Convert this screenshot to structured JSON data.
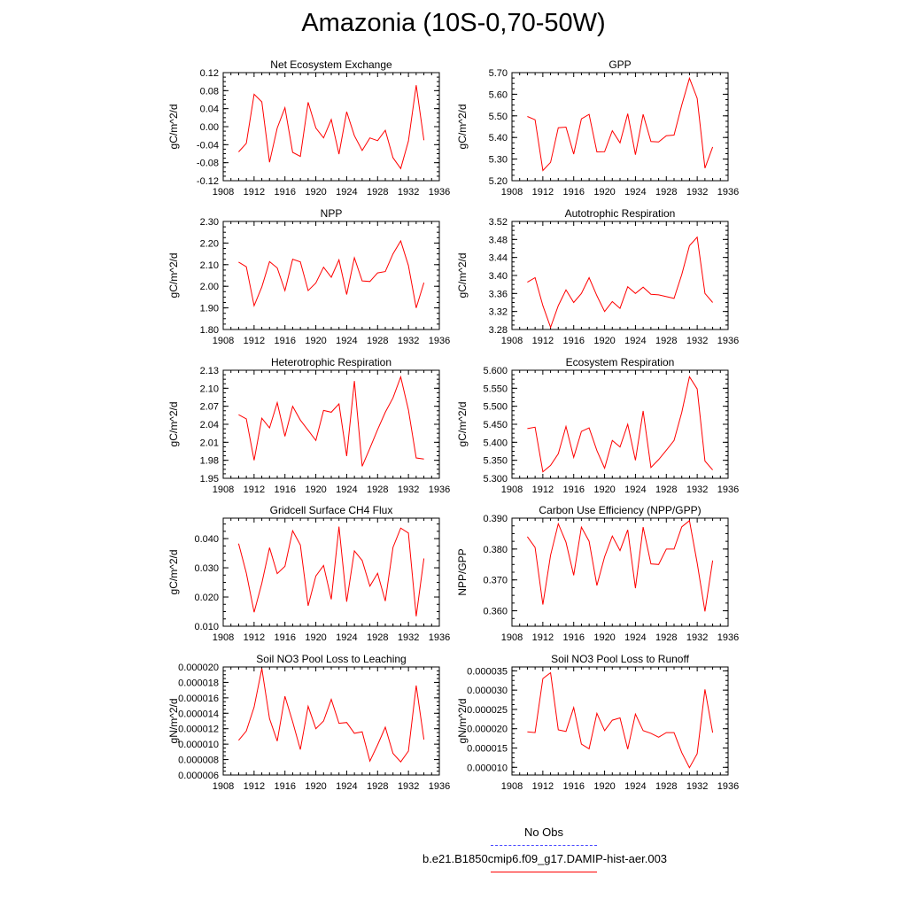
{
  "title": "Amazonia (10S-0,70-50W)",
  "line_color": "#ff0000",
  "obs_line_color": "#4a4aff",
  "legend": {
    "obs_label": "No Obs",
    "model_label": "b.e21.B1850cmip6.f09_g17.DAMIP-hist-aer.003"
  },
  "chart_data": [
    {
      "type": "line",
      "title": "Net Ecosystem Exchange",
      "ylabel": "gC/m^2/d",
      "xlim": [
        1908,
        1936
      ],
      "ylim": [
        -0.12,
        0.12
      ],
      "x_ticks": [
        "1908",
        "1912",
        "1916",
        "1920",
        "1924",
        "1928",
        "1932",
        "1936"
      ],
      "y_ticks": [
        "-0.12",
        "-0.08",
        "-0.04",
        "0.00",
        "0.04",
        "0.08",
        "0.12"
      ],
      "x": [
        1910,
        1911,
        1912,
        1913,
        1914,
        1915,
        1916,
        1917,
        1918,
        1919,
        1920,
        1921,
        1922,
        1923,
        1924,
        1925,
        1926,
        1927,
        1928,
        1929,
        1930,
        1931,
        1932,
        1933,
        1934
      ],
      "y": [
        -0.056,
        -0.037,
        0.072,
        0.055,
        -0.079,
        -0.003,
        0.042,
        -0.057,
        -0.066,
        0.054,
        -0.003,
        -0.025,
        0.016,
        -0.061,
        0.033,
        -0.02,
        -0.053,
        -0.025,
        -0.031,
        -0.008,
        -0.069,
        -0.093,
        -0.032,
        0.092,
        -0.03
      ]
    },
    {
      "type": "line",
      "title": "GPP",
      "ylabel": "gC/m^2/d",
      "xlim": [
        1908,
        1936
      ],
      "ylim": [
        5.2,
        5.7
      ],
      "x_ticks": [
        "1908",
        "1912",
        "1916",
        "1920",
        "1924",
        "1928",
        "1932",
        "1936"
      ],
      "y_ticks": [
        "5.20",
        "5.30",
        "5.40",
        "5.50",
        "5.60",
        "5.70"
      ],
      "x": [
        1910,
        1911,
        1912,
        1913,
        1914,
        1915,
        1916,
        1917,
        1918,
        1919,
        1920,
        1921,
        1922,
        1923,
        1924,
        1925,
        1926,
        1927,
        1928,
        1929,
        1930,
        1931,
        1932,
        1933,
        1934
      ],
      "y": [
        5.497,
        5.482,
        5.247,
        5.285,
        5.445,
        5.448,
        5.323,
        5.486,
        5.507,
        5.333,
        5.334,
        5.431,
        5.375,
        5.51,
        5.32,
        5.507,
        5.381,
        5.379,
        5.408,
        5.411,
        5.55,
        5.674,
        5.581,
        5.258,
        5.356
      ]
    },
    {
      "type": "line",
      "title": "NPP",
      "ylabel": "gC/m^2/d",
      "xlim": [
        1908,
        1936
      ],
      "ylim": [
        1.8,
        2.3
      ],
      "x_ticks": [
        "1908",
        "1912",
        "1916",
        "1920",
        "1924",
        "1928",
        "1932",
        "1936"
      ],
      "y_ticks": [
        "1.80",
        "1.90",
        "2.00",
        "2.10",
        "2.20",
        "2.30"
      ],
      "x": [
        1910,
        1911,
        1912,
        1913,
        1914,
        1915,
        1916,
        1917,
        1918,
        1919,
        1920,
        1921,
        1922,
        1923,
        1924,
        1925,
        1926,
        1927,
        1928,
        1929,
        1930,
        1931,
        1932,
        1933,
        1934
      ],
      "y": [
        2.112,
        2.09,
        1.91,
        1.997,
        2.114,
        2.085,
        1.98,
        2.125,
        2.113,
        1.98,
        2.015,
        2.088,
        2.042,
        2.122,
        1.962,
        2.132,
        2.025,
        2.022,
        2.062,
        2.068,
        2.15,
        2.21,
        2.096,
        1.9,
        2.017
      ]
    },
    {
      "type": "line",
      "title": "Autotrophic Respiration",
      "ylabel": "gC/m^2/d",
      "xlim": [
        1908,
        1936
      ],
      "ylim": [
        3.28,
        3.52
      ],
      "x_ticks": [
        "1908",
        "1912",
        "1916",
        "1920",
        "1924",
        "1928",
        "1932",
        "1936"
      ],
      "y_ticks": [
        "3.28",
        "3.32",
        "3.36",
        "3.40",
        "3.44",
        "3.48",
        "3.52"
      ],
      "x": [
        1910,
        1911,
        1912,
        1913,
        1914,
        1915,
        1916,
        1917,
        1918,
        1919,
        1920,
        1921,
        1922,
        1923,
        1924,
        1925,
        1926,
        1927,
        1928,
        1929,
        1930,
        1931,
        1932,
        1933,
        1934
      ],
      "y": [
        3.385,
        3.395,
        3.333,
        3.285,
        3.333,
        3.368,
        3.34,
        3.36,
        3.395,
        3.355,
        3.32,
        3.342,
        3.327,
        3.375,
        3.36,
        3.374,
        3.358,
        3.357,
        3.353,
        3.349,
        3.402,
        3.466,
        3.485,
        3.36,
        3.34
      ]
    },
    {
      "type": "line",
      "title": "Heterotrophic Respiration",
      "ylabel": "gC/m^2/d",
      "xlim": [
        1908,
        1936
      ],
      "ylim": [
        1.95,
        2.13
      ],
      "x_ticks": [
        "1908",
        "1912",
        "1916",
        "1920",
        "1924",
        "1928",
        "1932",
        "1936"
      ],
      "y_ticks": [
        "1.95",
        "1.98",
        "2.01",
        "2.04",
        "2.07",
        "2.10",
        "2.13"
      ],
      "x": [
        1910,
        1911,
        1912,
        1913,
        1914,
        1915,
        1916,
        1917,
        1918,
        1919,
        1920,
        1921,
        1922,
        1923,
        1924,
        1925,
        1926,
        1927,
        1928,
        1929,
        1930,
        1931,
        1932,
        1933,
        1934
      ],
      "y": [
        2.056,
        2.049,
        1.98,
        2.05,
        2.034,
        2.076,
        2.02,
        2.07,
        2.047,
        2.03,
        2.013,
        2.063,
        2.06,
        2.074,
        1.987,
        2.112,
        1.97,
        2.0,
        2.031,
        2.06,
        2.084,
        2.119,
        2.064,
        1.984,
        1.982
      ]
    },
    {
      "type": "line",
      "title": "Ecosystem Respiration",
      "ylabel": "gC/m^2/d",
      "xlim": [
        1908,
        1936
      ],
      "ylim": [
        5.3,
        5.6
      ],
      "x_ticks": [
        "1908",
        "1912",
        "1916",
        "1920",
        "1924",
        "1928",
        "1932",
        "1936"
      ],
      "y_ticks": [
        "5.300",
        "5.350",
        "5.400",
        "5.450",
        "5.500",
        "5.550",
        "5.600"
      ],
      "x": [
        1910,
        1911,
        1912,
        1913,
        1914,
        1915,
        1916,
        1917,
        1918,
        1919,
        1920,
        1921,
        1922,
        1923,
        1924,
        1925,
        1926,
        1927,
        1928,
        1929,
        1930,
        1931,
        1932,
        1933,
        1934
      ],
      "y": [
        5.438,
        5.442,
        5.318,
        5.336,
        5.368,
        5.444,
        5.358,
        5.43,
        5.44,
        5.377,
        5.328,
        5.405,
        5.387,
        5.45,
        5.35,
        5.487,
        5.33,
        5.352,
        5.378,
        5.405,
        5.483,
        5.582,
        5.548,
        5.348,
        5.323
      ]
    },
    {
      "type": "line",
      "title": "Gridcell Surface CH4 Flux",
      "ylabel": "gC/m^2/d",
      "xlim": [
        1908,
        1936
      ],
      "ylim": [
        0.01,
        0.047
      ],
      "x_ticks": [
        "1908",
        "1912",
        "1916",
        "1920",
        "1924",
        "1928",
        "1932",
        "1936"
      ],
      "y_ticks": [
        "0.010",
        "0.020",
        "0.030",
        "0.040"
      ],
      "y_tick_values": [
        0.01,
        0.02,
        0.03,
        0.04
      ],
      "x": [
        1910,
        1911,
        1912,
        1913,
        1914,
        1915,
        1916,
        1917,
        1918,
        1919,
        1920,
        1921,
        1922,
        1923,
        1924,
        1925,
        1926,
        1927,
        1928,
        1929,
        1930,
        1931,
        1932,
        1933,
        1934
      ],
      "y": [
        0.0383,
        0.0282,
        0.0148,
        0.0247,
        0.0369,
        0.028,
        0.0305,
        0.0427,
        0.0378,
        0.017,
        0.0272,
        0.0308,
        0.0192,
        0.0441,
        0.0184,
        0.0358,
        0.0325,
        0.0237,
        0.0281,
        0.0186,
        0.037,
        0.0436,
        0.0419,
        0.0134,
        0.0332
      ]
    },
    {
      "type": "line",
      "title": "Carbon Use Efficiency (NPP/GPP)",
      "ylabel": "NPP/GPP",
      "xlim": [
        1908,
        1936
      ],
      "ylim": [
        0.355,
        0.39
      ],
      "x_ticks": [
        "1908",
        "1912",
        "1916",
        "1920",
        "1924",
        "1928",
        "1932",
        "1936"
      ],
      "y_ticks": [
        "0.360",
        "0.370",
        "0.380",
        "0.390"
      ],
      "y_tick_values": [
        0.36,
        0.37,
        0.38,
        0.39
      ],
      "x": [
        1910,
        1911,
        1912,
        1913,
        1914,
        1915,
        1916,
        1917,
        1918,
        1919,
        1920,
        1921,
        1922,
        1923,
        1924,
        1925,
        1926,
        1927,
        1928,
        1929,
        1930,
        1931,
        1932,
        1933,
        1934
      ],
      "y": [
        0.384,
        0.3805,
        0.362,
        0.378,
        0.3882,
        0.3822,
        0.3715,
        0.3871,
        0.3825,
        0.3682,
        0.3775,
        0.3842,
        0.3795,
        0.3862,
        0.3673,
        0.3871,
        0.3752,
        0.375,
        0.38,
        0.38,
        0.3872,
        0.3892,
        0.3755,
        0.3598,
        0.3763
      ]
    },
    {
      "type": "line",
      "title": "Soil NO3 Pool Loss to Leaching",
      "ylabel": "gN/m^2/d",
      "xlim": [
        1908,
        1936
      ],
      "ylim": [
        6e-06,
        2e-05
      ],
      "x_ticks": [
        "1908",
        "1912",
        "1916",
        "1920",
        "1924",
        "1928",
        "1932",
        "1936"
      ],
      "y_ticks": [
        "0.000006",
        "0.000008",
        "0.000010",
        "0.000012",
        "0.000014",
        "0.000016",
        "0.000018",
        "0.000020"
      ],
      "x": [
        1910,
        1911,
        1912,
        1913,
        1914,
        1915,
        1916,
        1917,
        1918,
        1919,
        1920,
        1921,
        1922,
        1923,
        1924,
        1925,
        1926,
        1927,
        1928,
        1929,
        1930,
        1931,
        1932,
        1933,
        1934
      ],
      "y": [
        1.05e-05,
        1.17e-05,
        1.48e-05,
        1.98e-05,
        1.33e-05,
        1.04e-05,
        1.62e-05,
        1.29e-05,
        9.3e-06,
        1.49e-05,
        1.2e-05,
        1.3e-05,
        1.58e-05,
        1.27e-05,
        1.28e-05,
        1.14e-05,
        1.16e-05,
        7.8e-06,
        9.9e-06,
        1.22e-05,
        8.8e-06,
        7.7e-06,
        9.1e-06,
        1.76e-05,
        1.06e-05
      ]
    },
    {
      "type": "line",
      "title": "Soil NO3 Pool Loss to Runoff",
      "ylabel": "gN/m^2/d",
      "xlim": [
        1908,
        1936
      ],
      "ylim": [
        8e-06,
        3.6e-05
      ],
      "x_ticks": [
        "1908",
        "1912",
        "1916",
        "1920",
        "1924",
        "1928",
        "1932",
        "1936"
      ],
      "y_ticks": [
        "0.000010",
        "0.000015",
        "0.000020",
        "0.000025",
        "0.000030",
        "0.000035"
      ],
      "y_tick_values": [
        1e-05,
        1.5e-05,
        2e-05,
        2.5e-05,
        3e-05,
        3.5e-05
      ],
      "x": [
        1910,
        1911,
        1912,
        1913,
        1914,
        1915,
        1916,
        1917,
        1918,
        1919,
        1920,
        1921,
        1922,
        1923,
        1924,
        1925,
        1926,
        1927,
        1928,
        1929,
        1930,
        1931,
        1932,
        1933,
        1934
      ],
      "y": [
        1.92e-05,
        1.9e-05,
        3.3e-05,
        3.45e-05,
        1.97e-05,
        1.93e-05,
        2.55e-05,
        1.6e-05,
        1.48e-05,
        2.4e-05,
        1.95e-05,
        2.22e-05,
        2.28e-05,
        1.47e-05,
        2.38e-05,
        1.95e-05,
        1.88e-05,
        1.78e-05,
        1.9e-05,
        1.9e-05,
        1.38e-05,
        9.9e-06,
        1.35e-05,
        3.02e-05,
        1.9e-05
      ]
    }
  ]
}
